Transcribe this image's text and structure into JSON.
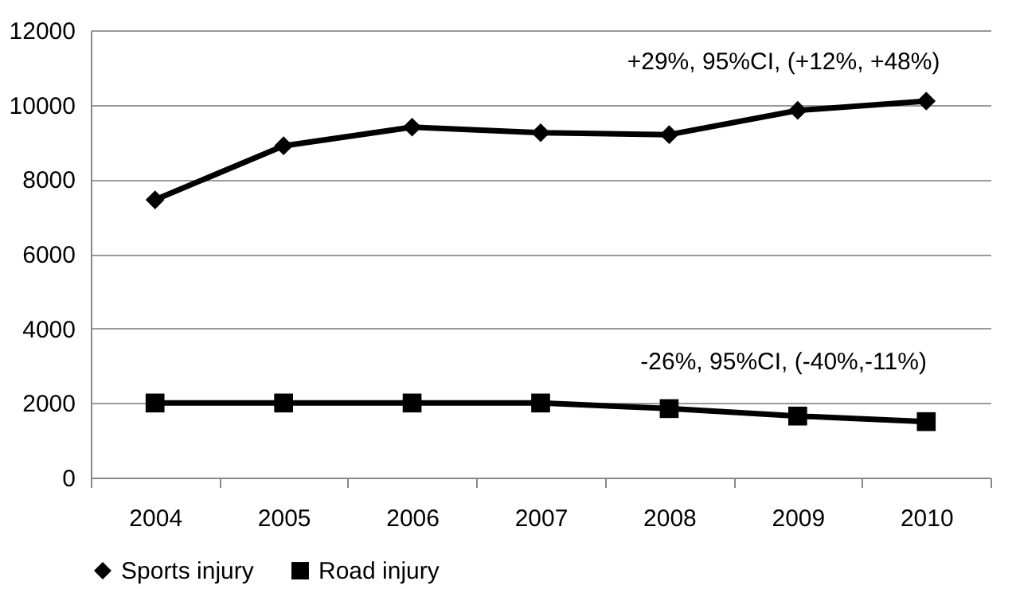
{
  "chart_data": {
    "type": "line",
    "categories": [
      "2004",
      "2005",
      "2006",
      "2007",
      "2008",
      "2009",
      "2010"
    ],
    "series": [
      {
        "name": "Sports injury",
        "color": "#000000",
        "marker": "diamond",
        "values": [
          7450,
          8900,
          9400,
          9250,
          9200,
          9850,
          10100
        ]
      },
      {
        "name": "Road injury",
        "color": "#000000",
        "marker": "square",
        "values": [
          2000,
          2000,
          2000,
          2000,
          1850,
          1650,
          1500
        ]
      }
    ],
    "ylim": [
      0,
      12000
    ],
    "yticks": [
      0,
      2000,
      4000,
      6000,
      8000,
      10000,
      12000
    ],
    "grid": "y",
    "legend": "bottom",
    "annotations": [
      "+29%, 95%CI, (+12%, +48%)",
      "-26%, 95%CI, (-40%,-11%)"
    ]
  }
}
